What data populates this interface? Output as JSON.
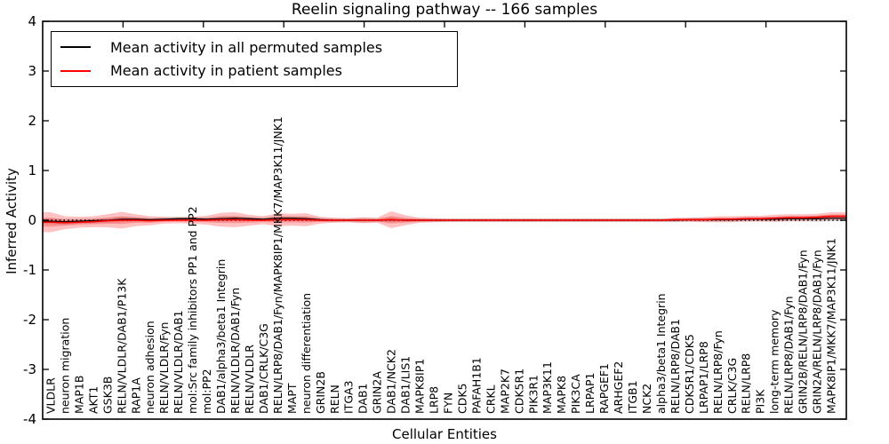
{
  "chart_data": {
    "type": "line",
    "title": "Reelin signaling pathway -- 166 samples",
    "xlabel": "Cellular Entities",
    "ylabel": "Inferred Activity",
    "ylim": [
      -4,
      4
    ],
    "yticks": [
      4,
      3,
      2,
      1,
      0,
      -1,
      -2,
      -3,
      -4
    ],
    "grid": false,
    "zero_reference_line": true,
    "legend_position": "upper left",
    "legend": [
      {
        "label": "Mean activity in all permuted samples",
        "color": "#000000"
      },
      {
        "label": "Mean activity in patient samples",
        "color": "#ff0000"
      }
    ],
    "categories": [
      "VLDLR",
      "neuron migration",
      "MAP1B",
      "AKT1",
      "GSK3B",
      "RELN/VLDLR/DAB1/P13K",
      "RAP1A",
      "neuron adhesion",
      "RELN/VLDLR/Fyn",
      "RELN/VLDLR/DAB1",
      "mol:Src family inhibitors PP1 and PP2",
      "mol:PP2",
      "DAB1/alpha3/beta1 Integrin",
      "RELN/VLDLR/DAB1/Fyn",
      "RELN/VLDLR",
      "DAB1/CRLK/C3G",
      "RELN/LRP8/DAB1/Fyn/MAPK8IP1/MKK7/MAP3K11/JNK1",
      "MAPT",
      "neuron differentiation",
      "GRIN2B",
      "RELN",
      "ITGA3",
      "DAB1",
      "GRIN2A",
      "DAB1/NCK2",
      "DAB1/LIS1",
      "MAPK8IP1",
      "LRP8",
      "FYN",
      "CDK5",
      "PAFAH1B1",
      "CRKL",
      "MAP2K7",
      "CDK5R1",
      "PIK3R1",
      "MAP3K11",
      "MAPK8",
      "PIK3CA",
      "LRPAP1",
      "RAPGEF1",
      "ARHGEF2",
      "ITGB1",
      "NCK2",
      "alpha3/beta1 Integrin",
      "RELN/LRP8/DAB1",
      "CDK5R1/CDK5",
      "LRPAP1/LRP8",
      "RELN/LRP8/Fyn",
      "CRLK/C3G",
      "RELN/LRP8",
      "PI3K",
      "long-term memory",
      "RELN/LRP8/DAB1/Fyn",
      "GRIN2B/RELN/LRP8/DAB1/Fyn",
      "GRIN2A/RELN/LRP8/DAB1/Fyn",
      "MAPK8IP1/MKK7/MAP3K11/JNK1"
    ],
    "series": [
      {
        "name": "Mean activity in all permuted samples",
        "color": "#000000",
        "band_fill": "rgba(110,110,110,0.25)",
        "values": [
          -0.02,
          -0.03,
          -0.02,
          -0.01,
          0.0,
          0.02,
          0.02,
          0.01,
          0.02,
          0.03,
          0.03,
          0.02,
          0.03,
          0.04,
          0.03,
          0.02,
          0.04,
          0.04,
          0.03,
          0.01,
          0.0,
          0.0,
          0.0,
          0.0,
          0.01,
          0.0,
          0.0,
          0.0,
          0.0,
          0.0,
          0.0,
          0.0,
          0.0,
          0.0,
          0.0,
          0.0,
          0.0,
          0.0,
          0.0,
          0.0,
          0.0,
          0.0,
          0.0,
          0.0,
          0.0,
          0.01,
          0.01,
          0.01,
          0.01,
          0.02,
          0.02,
          0.02,
          0.03,
          0.03,
          0.03,
          0.04
        ],
        "band_halfwidth": [
          0.06,
          0.06,
          0.05,
          0.05,
          0.05,
          0.06,
          0.05,
          0.04,
          0.04,
          0.04,
          0.04,
          0.04,
          0.05,
          0.05,
          0.04,
          0.04,
          0.05,
          0.05,
          0.05,
          0.04,
          0.04,
          0.04,
          0.05,
          0.04,
          0.05,
          0.04,
          0.04,
          0.04,
          0.04,
          0.04,
          0.04,
          0.04,
          0.04,
          0.04,
          0.04,
          0.04,
          0.04,
          0.04,
          0.04,
          0.04,
          0.04,
          0.04,
          0.04,
          0.04,
          0.04,
          0.04,
          0.04,
          0.04,
          0.04,
          0.04,
          0.04,
          0.05,
          0.05,
          0.05,
          0.06,
          0.06
        ]
      },
      {
        "name": "Mean activity in patient samples",
        "color": "#ff0000",
        "band_fill": "rgba(255,25,25,0.27)",
        "values": [
          -0.04,
          -0.05,
          -0.04,
          -0.03,
          -0.01,
          0.0,
          0.0,
          -0.01,
          0.0,
          0.0,
          0.0,
          0.0,
          0.01,
          0.01,
          0.0,
          0.0,
          0.01,
          0.01,
          0.01,
          0.0,
          0.0,
          0.0,
          0.0,
          0.0,
          0.01,
          0.0,
          0.0,
          0.0,
          0.0,
          0.0,
          0.0,
          0.0,
          0.0,
          0.0,
          0.0,
          0.0,
          0.0,
          0.0,
          0.0,
          0.0,
          0.0,
          0.0,
          0.0,
          0.0,
          0.01,
          0.01,
          0.01,
          0.02,
          0.02,
          0.03,
          0.03,
          0.04,
          0.05,
          0.05,
          0.06,
          0.08
        ],
        "band_halfwidth": [
          0.2,
          0.13,
          0.11,
          0.11,
          0.13,
          0.17,
          0.12,
          0.09,
          0.07,
          0.06,
          0.07,
          0.09,
          0.14,
          0.15,
          0.11,
          0.08,
          0.13,
          0.12,
          0.13,
          0.07,
          0.05,
          0.04,
          0.06,
          0.05,
          0.17,
          0.1,
          0.05,
          0.04,
          0.03,
          0.03,
          0.03,
          0.03,
          0.03,
          0.03,
          0.03,
          0.03,
          0.03,
          0.03,
          0.03,
          0.03,
          0.03,
          0.03,
          0.03,
          0.03,
          0.04,
          0.04,
          0.05,
          0.06,
          0.06,
          0.06,
          0.06,
          0.07,
          0.07,
          0.07,
          0.07,
          0.08
        ]
      }
    ]
  }
}
